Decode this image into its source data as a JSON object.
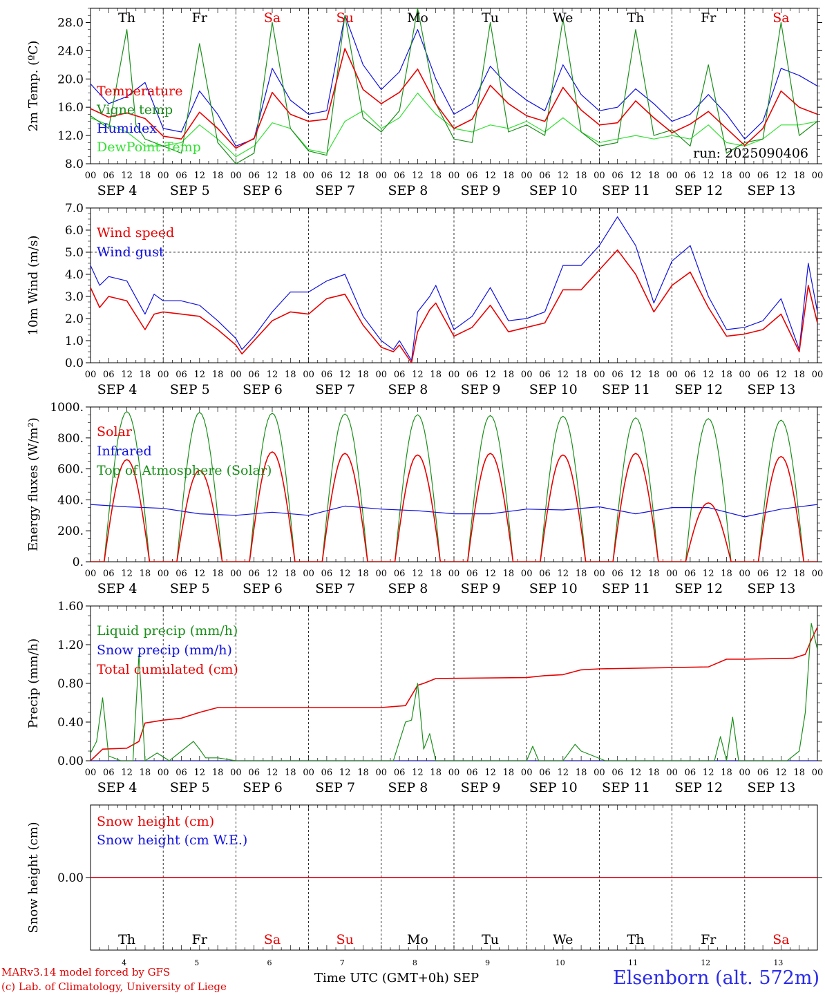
{
  "colors": {
    "red": "#e80000",
    "green": "#1a8f1a",
    "blue": "#1010e0",
    "lightgreen": "#33e033",
    "weekend": "#e80000",
    "axis": "#000000"
  },
  "days": {
    "names": [
      "Th",
      "Fr",
      "Sa",
      "Su",
      "Mo",
      "Tu",
      "We",
      "Th",
      "Fr",
      "Sa"
    ],
    "weekend": [
      false,
      false,
      true,
      true,
      false,
      false,
      false,
      false,
      false,
      true
    ],
    "dates": [
      "SEP  4",
      "SEP  5",
      "SEP  6",
      "SEP  7",
      "SEP  8",
      "SEP  9",
      "SEP 10",
      "SEP 11",
      "SEP 12",
      "SEP 13"
    ],
    "numbers": [
      "4",
      "5",
      "6",
      "7",
      "8",
      "9",
      "10",
      "11",
      "12",
      "13"
    ],
    "hour_ticks": [
      "00",
      "06",
      "12",
      "18"
    ],
    "final_tick": "00"
  },
  "footer": {
    "credit_line1": "MARv3.14 model forced by GFS",
    "credit_line2": "(c) Lab. of Climatology, University of Liege",
    "time_label": "Time UTC (GMT+0h) SEP",
    "station": "Elsenborn (alt. 572m)"
  },
  "chart_data": [
    {
      "type": "line",
      "ylabel": "2m Temp. (ºC)",
      "ylim": [
        8,
        30
      ],
      "yticks": [
        8,
        12,
        16,
        20,
        24,
        28
      ],
      "ytick_labels": [
        "8.0",
        "12.0",
        "16.0",
        "20.0",
        "24.0",
        "28.0"
      ],
      "annotation": "run: 2025090406",
      "x_unit": "hours since SEP 4 00 UTC",
      "series": [
        {
          "name": "Temperature",
          "color": "red",
          "x": [
            0,
            6,
            12,
            18,
            24,
            30,
            36,
            42,
            48,
            54,
            60,
            66,
            72,
            78,
            84,
            90,
            96,
            102,
            108,
            114,
            120,
            126,
            132,
            138,
            144,
            150,
            156,
            162,
            168,
            174,
            180,
            186,
            192,
            198,
            204,
            210,
            216,
            222,
            228,
            234,
            240
          ],
          "y": [
            15.8,
            14.6,
            15.2,
            14.4,
            11.9,
            11.5,
            15.3,
            13.0,
            10.2,
            11.6,
            18.1,
            15.0,
            14.0,
            14.3,
            24.3,
            18.5,
            16.5,
            18.1,
            21.4,
            16.5,
            13.0,
            14.3,
            19.1,
            16.5,
            14.8,
            14.0,
            18.8,
            15.6,
            13.5,
            13.8,
            16.9,
            14.5,
            12.4,
            13.6,
            15.4,
            13.0,
            10.6,
            13.0,
            18.3,
            16.0,
            15.0
          ]
        },
        {
          "name": "Vigne temp",
          "color": "green",
          "x": [
            0,
            6,
            9,
            12,
            15,
            18,
            24,
            30,
            36,
            42,
            48,
            54,
            60,
            66,
            72,
            78,
            84,
            90,
            96,
            102,
            108,
            114,
            120,
            126,
            132,
            138,
            144,
            150,
            156,
            162,
            168,
            174,
            180,
            186,
            192,
            198,
            204,
            210,
            216,
            222,
            228,
            234,
            240
          ],
          "y": [
            14.8,
            13.0,
            20.0,
            27.0,
            13.5,
            11.5,
            10.5,
            9.5,
            25.0,
            11.0,
            8.0,
            9.5,
            28.0,
            13.0,
            9.8,
            9.2,
            29.0,
            14.5,
            12.5,
            15.5,
            30.0,
            16.5,
            11.5,
            11.0,
            28.0,
            12.5,
            13.5,
            12.0,
            28.5,
            12.5,
            10.5,
            11.0,
            27.0,
            12.0,
            12.8,
            10.5,
            22.0,
            9.5,
            11.0,
            11.5,
            28.0,
            12.0,
            14.0
          ]
        },
        {
          "name": "Humidex",
          "color": "blue",
          "x": [
            0,
            6,
            12,
            18,
            24,
            30,
            36,
            42,
            48,
            54,
            60,
            66,
            72,
            78,
            84,
            90,
            96,
            102,
            108,
            114,
            120,
            126,
            132,
            138,
            144,
            150,
            156,
            162,
            168,
            174,
            180,
            186,
            192,
            198,
            204,
            210,
            216,
            222,
            228,
            234,
            240
          ],
          "y": [
            19.3,
            16.5,
            17.5,
            19.5,
            13.0,
            12.5,
            18.3,
            15.0,
            10.5,
            11.5,
            21.5,
            17.0,
            15.0,
            15.5,
            29.0,
            22.0,
            18.5,
            21.0,
            27.0,
            20.0,
            15.0,
            16.5,
            21.8,
            19.0,
            17.0,
            15.5,
            22.0,
            17.8,
            15.5,
            16.0,
            18.6,
            16.5,
            14.0,
            15.0,
            17.8,
            15.0,
            11.5,
            14.0,
            21.5,
            20.5,
            19.0
          ]
        },
        {
          "name": "DewPoint Temp",
          "color": "lightgreen",
          "x": [
            0,
            6,
            12,
            18,
            24,
            30,
            36,
            42,
            48,
            54,
            60,
            66,
            72,
            78,
            84,
            90,
            96,
            102,
            108,
            114,
            120,
            126,
            132,
            138,
            144,
            150,
            156,
            162,
            168,
            174,
            180,
            186,
            192,
            198,
            204,
            210,
            216,
            222,
            228,
            234,
            240
          ],
          "y": [
            14.5,
            13.5,
            12.5,
            10.5,
            10.5,
            11.0,
            13.5,
            11.5,
            9.0,
            10.5,
            13.8,
            13.0,
            10.0,
            9.5,
            14.0,
            15.5,
            13.0,
            14.5,
            18.0,
            15.0,
            13.0,
            12.5,
            13.5,
            13.0,
            14.0,
            12.5,
            14.5,
            12.5,
            11.0,
            11.5,
            12.0,
            11.5,
            12.0,
            11.5,
            13.5,
            11.0,
            10.5,
            11.5,
            13.5,
            13.5,
            14.0
          ]
        }
      ]
    },
    {
      "type": "line",
      "ylabel": "10m Wind (m/s)",
      "ylim": [
        0,
        7
      ],
      "yticks": [
        0,
        1,
        2,
        3,
        4,
        5,
        6,
        7
      ],
      "ytick_labels": [
        "0.0",
        "1.0",
        "2.0",
        "3.0",
        "4.0",
        "5.0",
        "6.0",
        "7.0"
      ],
      "reference_line": 5.0,
      "x_unit": "hours since SEP 4 00 UTC",
      "series": [
        {
          "name": "Wind speed",
          "color": "red",
          "x": [
            0,
            3,
            6,
            12,
            18,
            21,
            24,
            30,
            36,
            42,
            48,
            50,
            54,
            60,
            66,
            72,
            78,
            84,
            90,
            96,
            100,
            102,
            106,
            108,
            112,
            114,
            120,
            126,
            132,
            138,
            144,
            150,
            156,
            162,
            168,
            174,
            180,
            186,
            192,
            198,
            204,
            210,
            216,
            222,
            228,
            234,
            237,
            240
          ],
          "y": [
            3.4,
            2.5,
            3.0,
            2.8,
            1.5,
            2.2,
            2.3,
            2.2,
            2.1,
            1.5,
            0.8,
            0.4,
            1.0,
            1.9,
            2.3,
            2.2,
            2.9,
            3.1,
            1.7,
            0.7,
            0.5,
            0.8,
            0.0,
            1.4,
            2.4,
            2.7,
            1.2,
            1.6,
            2.6,
            1.4,
            1.6,
            1.8,
            3.3,
            3.3,
            4.2,
            5.1,
            4.0,
            2.3,
            3.5,
            4.1,
            2.5,
            1.2,
            1.3,
            1.5,
            2.2,
            0.5,
            3.5,
            1.8
          ]
        },
        {
          "name": "Wind gust",
          "color": "blue",
          "x": [
            0,
            3,
            6,
            12,
            18,
            21,
            24,
            30,
            36,
            42,
            48,
            50,
            54,
            60,
            66,
            72,
            78,
            84,
            90,
            96,
            100,
            102,
            106,
            108,
            112,
            114,
            120,
            126,
            132,
            138,
            144,
            150,
            156,
            162,
            168,
            174,
            180,
            186,
            192,
            198,
            204,
            210,
            216,
            222,
            228,
            234,
            237,
            240
          ],
          "y": [
            4.4,
            3.5,
            3.9,
            3.7,
            2.2,
            3.1,
            2.8,
            2.8,
            2.6,
            1.9,
            1.1,
            0.6,
            1.2,
            2.3,
            3.2,
            3.2,
            3.7,
            4.0,
            2.1,
            1.0,
            0.6,
            1.0,
            0.1,
            2.3,
            3.0,
            3.5,
            1.5,
            2.1,
            3.4,
            1.9,
            2.0,
            2.3,
            4.4,
            4.4,
            5.3,
            6.6,
            5.3,
            2.7,
            4.6,
            5.3,
            3.0,
            1.5,
            1.6,
            1.9,
            2.9,
            0.6,
            4.5,
            2.3
          ]
        }
      ]
    },
    {
      "type": "line",
      "ylabel": "Energy fluxes (W/m²)",
      "ylim": [
        0,
        1000
      ],
      "yticks": [
        0,
        200,
        400,
        600,
        800,
        1000
      ],
      "ytick_labels": [
        "0.",
        "200.",
        "400.",
        "600.",
        "800.",
        "1000."
      ],
      "x_unit": "hours since SEP 4 00 UTC",
      "daylight": {
        "sunrise": 4.5,
        "sunset": 19.5,
        "noon": 12
      },
      "series": [
        {
          "name": "Solar",
          "color": "red",
          "daily_peak": [
            660,
            590,
            710,
            700,
            690,
            700,
            690,
            700,
            380,
            680
          ]
        },
        {
          "name": "Infrared",
          "color": "blue",
          "x": [
            0,
            12,
            24,
            36,
            48,
            60,
            72,
            84,
            96,
            108,
            120,
            132,
            144,
            156,
            168,
            180,
            192,
            204,
            216,
            228,
            240
          ],
          "y": [
            370,
            355,
            345,
            310,
            300,
            320,
            300,
            360,
            340,
            330,
            310,
            310,
            340,
            335,
            355,
            310,
            350,
            350,
            290,
            340,
            370
          ]
        },
        {
          "name": "Top of Atmosphere (Solar)",
          "color": "green",
          "daily_peak": [
            970,
            965,
            960,
            955,
            950,
            945,
            940,
            930,
            925,
            915
          ]
        }
      ]
    },
    {
      "type": "line",
      "ylabel": "Precip (mm/h)",
      "ylim": [
        0,
        1.6
      ],
      "yticks": [
        0,
        0.4,
        0.8,
        1.2,
        1.6
      ],
      "ytick_labels": [
        "0.00",
        "0.40",
        "0.80",
        "1.20",
        "1.60"
      ],
      "x_unit": "hours since SEP 4 00 UTC",
      "series": [
        {
          "name": "Liquid precip (mm/h)",
          "color": "green",
          "x": [
            0,
            2,
            4,
            6,
            10,
            14,
            16,
            18,
            22,
            26,
            30,
            34,
            36,
            38,
            42,
            48,
            100,
            104,
            106,
            108,
            110,
            112,
            114,
            122,
            144,
            146,
            148,
            156,
            160,
            162,
            170,
            192,
            206,
            208,
            210,
            212,
            214,
            230,
            234,
            236,
            238,
            240
          ],
          "y": [
            0.08,
            0.2,
            0.65,
            0.05,
            0.0,
            0.0,
            1.1,
            0.0,
            0.08,
            0.0,
            0.1,
            0.2,
            0.12,
            0.03,
            0.03,
            0.0,
            0.0,
            0.4,
            0.42,
            0.8,
            0.12,
            0.28,
            0.0,
            0.0,
            0.0,
            0.15,
            0.0,
            0.0,
            0.17,
            0.1,
            0.0,
            0.0,
            0.0,
            0.25,
            0.0,
            0.45,
            0.0,
            0.0,
            0.1,
            0.5,
            1.42,
            1.15
          ]
        },
        {
          "name": "Snow precip (mm/h)",
          "color": "blue",
          "x": [
            0,
            240
          ],
          "y": [
            0,
            0
          ]
        },
        {
          "name": "Total cumulated (cm)",
          "color": "red",
          "x": [
            0,
            4,
            12,
            16,
            18,
            24,
            30,
            36,
            42,
            48,
            96,
            104,
            108,
            110,
            114,
            144,
            150,
            156,
            162,
            168,
            204,
            210,
            216,
            232,
            236,
            238,
            240
          ],
          "y": [
            0.0,
            0.12,
            0.13,
            0.2,
            0.39,
            0.42,
            0.44,
            0.5,
            0.55,
            0.55,
            0.55,
            0.57,
            0.78,
            0.8,
            0.85,
            0.86,
            0.88,
            0.89,
            0.94,
            0.95,
            0.97,
            1.05,
            1.05,
            1.06,
            1.1,
            1.25,
            1.38
          ]
        }
      ]
    },
    {
      "type": "line",
      "ylabel": "Snow height (cm)",
      "ylim": [
        -0.5,
        0.5
      ],
      "yticks": [
        0
      ],
      "ytick_labels": [
        "0.00"
      ],
      "x_unit": "hours since SEP 4 00 UTC",
      "series": [
        {
          "name": "Snow height (cm)",
          "color": "red",
          "x": [
            0,
            240
          ],
          "y": [
            0,
            0
          ]
        },
        {
          "name": "Snow height (cm W.E.)",
          "color": "blue",
          "x": [
            0,
            240
          ],
          "y": [
            0,
            0
          ]
        }
      ]
    }
  ]
}
